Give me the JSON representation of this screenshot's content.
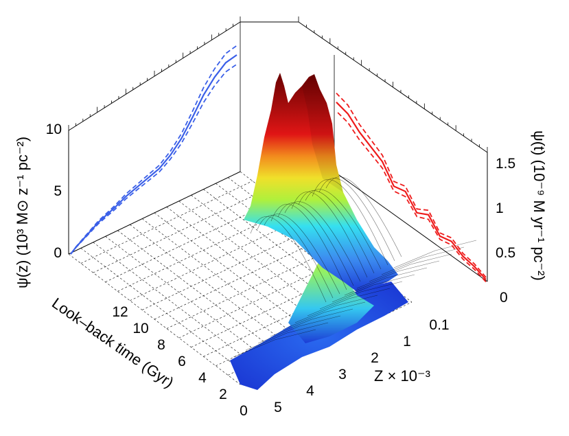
{
  "chart_data": {
    "type": "surface3d",
    "axes": {
      "lookback": {
        "title": "Look–back time (Gyr)",
        "ticks": [
          "0",
          "2",
          "4",
          "6",
          "8",
          "10",
          "12"
        ]
      },
      "metallicity": {
        "title": "Z × 10⁻³",
        "ticks": [
          "0.1",
          "1",
          "2",
          "3",
          "4",
          "5"
        ]
      },
      "psi_z": {
        "title": "ψ(z) (10³ M⊙ z⁻¹ pc⁻²)",
        "ticks": [
          "0",
          "5",
          "10"
        ]
      },
      "psi_t": {
        "title": "ψ(t) (10⁻⁹ M  yr⁻¹ pc⁻²)",
        "ticks": [
          "0",
          "0.5",
          "1",
          "1.5"
        ]
      }
    },
    "projections": {
      "psi_z_vs_Z": {
        "color": "#3a5fe8",
        "x_Z": [
          0.0,
          0.1,
          0.3,
          0.5,
          0.8,
          1.0,
          1.3,
          1.6,
          1.8,
          2.0,
          2.2,
          2.4,
          2.6,
          2.8,
          3.0
        ],
        "y": [
          0.0,
          0.4,
          1.0,
          1.6,
          2.2,
          2.7,
          3.2,
          3.7,
          4.4,
          5.4,
          6.8,
          8.3,
          9.4,
          10.2,
          10.4
        ]
      },
      "psi_t_vs_time": {
        "color": "#ee1b1b",
        "x_gyr": [
          0.0,
          0.5,
          1.0,
          1.5,
          2.0,
          2.5,
          3.0,
          3.5,
          4.0,
          4.5,
          5.0,
          5.5,
          6.0,
          6.5
        ],
        "y": [
          0.35,
          0.42,
          0.45,
          0.55,
          0.5,
          0.7,
          0.6,
          0.8,
          0.75,
          1.0,
          1.1,
          1.2,
          1.35,
          1.4
        ]
      }
    },
    "surface_peaks": [
      {
        "lookback_gyr": 12.5,
        "Z": 2.5,
        "value": 10.5,
        "color": "#7a0000"
      },
      {
        "lookback_gyr": 11.8,
        "Z": 2.4,
        "value": 9.8,
        "color": "#7a0000"
      },
      {
        "lookback_gyr": 6.0,
        "Z": 1.5,
        "value": 5.0,
        "color": "#d8e51a"
      }
    ],
    "colormap": [
      "#1c3cd6",
      "#3c8cf0",
      "#35e0f0",
      "#aff03c",
      "#f0e02a",
      "#f28a1d",
      "#e01515",
      "#7a0000"
    ],
    "grid": true
  }
}
